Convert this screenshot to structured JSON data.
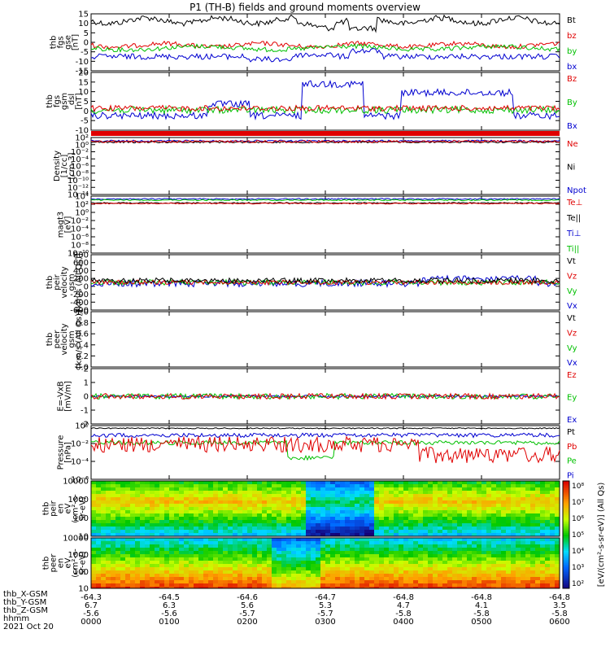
{
  "title": "P1 (TH-B) fields and ground moments overview",
  "colors": {
    "black": "#000000",
    "red": "#e00000",
    "green": "#00c000",
    "blue": "#0000d0"
  },
  "panels": [
    {
      "id": "fgs_gse",
      "ylabel": [
        "thb",
        "fgs",
        "gse",
        "[nT]"
      ],
      "ticks": [
        "15",
        "10",
        "5",
        "0",
        "-5",
        "-10",
        "-15"
      ],
      "legend": [
        {
          "t": "Bt",
          "c": "black"
        },
        {
          "t": "bz",
          "c": "red"
        },
        {
          "t": "by",
          "c": "green"
        },
        {
          "t": "bx",
          "c": "blue"
        }
      ]
    },
    {
      "id": "fgs_gsm",
      "ylabel": [
        "thb",
        "fgs",
        "gsm",
        "_dsl",
        "[nT]"
      ],
      "ticks": [
        "20",
        "15",
        "10",
        "5",
        "0",
        "-5",
        "-10"
      ],
      "legend": [
        {
          "t": "Bz",
          "c": "red"
        },
        {
          "t": "By",
          "c": "green"
        },
        {
          "t": "Bx",
          "c": "blue"
        }
      ]
    },
    {
      "id": "density",
      "ylabel": [
        "Density",
        "[1/cc]",
        "[cm-3]"
      ],
      "ticks": [
        "10²",
        "10⁰",
        "10⁻²",
        "10⁻⁴",
        "10⁻⁶",
        "10⁻⁸",
        "10⁻¹⁰",
        "10⁻¹²",
        "10⁻¹⁴"
      ],
      "legend": [
        {
          "t": "Ne",
          "c": "red"
        },
        {
          "t": "Ni",
          "c": "black"
        },
        {
          "t": "Npot",
          "c": "blue"
        }
      ]
    },
    {
      "id": "temp",
      "ylabel": [
        "magt3",
        "[eV]"
      ],
      "ticks": [
        "10⁴",
        "10²",
        "10⁰",
        "10⁻²",
        "10⁻⁴",
        "10⁻⁶",
        "10⁻⁸",
        "10⁻¹⁰"
      ],
      "legend": [
        {
          "t": "Te⊥",
          "c": "red"
        },
        {
          "t": "Te||",
          "c": "black"
        },
        {
          "t": "Ti⊥",
          "c": "blue"
        },
        {
          "t": "Ti||",
          "c": "green"
        }
      ]
    },
    {
      "id": "vel_i",
      "ylabel": [
        "thb",
        "peir",
        "velocity",
        "gsm",
        "[km/s (All Qs)]"
      ],
      "ticks": [
        "800",
        "600",
        "400",
        "200",
        "0",
        "-200",
        "-400",
        "-600"
      ],
      "legend": [
        {
          "t": "Vt",
          "c": "black"
        },
        {
          "t": "Vz",
          "c": "red"
        },
        {
          "t": "Vy",
          "c": "green"
        },
        {
          "t": "Vx",
          "c": "blue"
        }
      ]
    },
    {
      "id": "vel_e",
      "ylabel": [
        "thb",
        "peer",
        "velocity",
        "gsm",
        "[km/s (All Qs)]"
      ],
      "ticks": [
        "1.0",
        "0.8",
        "0.6",
        "0.4",
        "0.2",
        "0.0"
      ],
      "legend": [
        {
          "t": "Vt",
          "c": "black"
        },
        {
          "t": "Vz",
          "c": "red"
        },
        {
          "t": "Vy",
          "c": "green"
        },
        {
          "t": "Vx",
          "c": "blue"
        }
      ]
    },
    {
      "id": "efield",
      "ylabel": [
        "E=-VxB",
        "[mV/m]"
      ],
      "ticks": [
        "2",
        "1",
        "0",
        "-1",
        "-2"
      ],
      "legend": [
        {
          "t": "Ez",
          "c": "red"
        },
        {
          "t": "Ey",
          "c": "green"
        },
        {
          "t": "Ex",
          "c": "blue"
        }
      ]
    },
    {
      "id": "pressure",
      "ylabel": [
        "Pressure",
        "[nPa]"
      ],
      "ticks": [
        "10⁰",
        "10⁻²",
        "10⁻⁴",
        "10⁻⁶"
      ],
      "legend": [
        {
          "t": "Pt",
          "c": "black"
        },
        {
          "t": "Pb",
          "c": "red"
        },
        {
          "t": "Pe",
          "c": "green"
        },
        {
          "t": "Pi",
          "c": "blue"
        }
      ]
    },
    {
      "id": "peir_eflux",
      "ylabel": [
        "thb",
        "peir",
        "en",
        "eV",
        "(cm²-s-",
        "sr-eV)"
      ],
      "ticks": [
        "10000",
        "1000",
        "100",
        "10"
      ]
    },
    {
      "id": "peer_eflux",
      "ylabel": [
        "thb",
        "peer",
        "en",
        "eV",
        "(cm²-s-",
        "sr-eV)"
      ],
      "ticks": [
        "10000",
        "1000",
        "100",
        "10"
      ]
    }
  ],
  "colorbar": {
    "label": "[eV/(cm²-s-sr-eV)] (All Qs)",
    "ticks": [
      "10⁸",
      "10⁷",
      "10⁶",
      "10⁵",
      "10⁴",
      "10³",
      "10²"
    ]
  },
  "xaxis": {
    "labels": [
      "thb_X-GSM",
      "thb_Y-GSM",
      "thb_Z-GSM",
      "hhmm"
    ],
    "date": "2021 Oct 20",
    "cols": [
      [
        "-64.3",
        "6.7",
        "-5.6",
        "0000"
      ],
      [
        "-64.5",
        "6.3",
        "-5.6",
        "0100"
      ],
      [
        "-64.6",
        "5.6",
        "-5.7",
        "0200"
      ],
      [
        "-64.7",
        "5.3",
        "-5.7",
        "0300"
      ],
      [
        "-64.8",
        "4.7",
        "-5.8",
        "0400"
      ],
      [
        "-64.8",
        "4.1",
        "-5.8",
        "0500"
      ],
      [
        "-64.8",
        "3.5",
        "-5.8",
        "0600"
      ]
    ]
  }
}
